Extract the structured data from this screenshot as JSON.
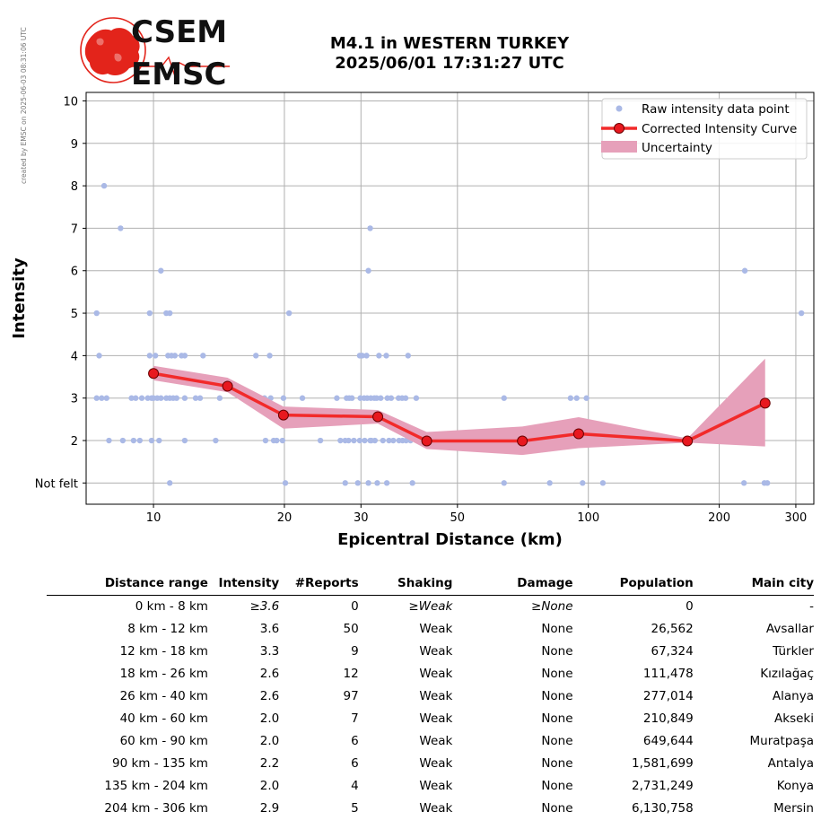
{
  "credit": "created by EMSC on 2025-06-03 08:31:06 UTC",
  "logo": {
    "line1": "CSEM",
    "line2": "EMSC",
    "red": "#e3241b"
  },
  "title": {
    "line1": "M4.1 in WESTERN TURKEY",
    "line2": "2025/06/01 17:31:27 UTC"
  },
  "chart_data": {
    "type": "scatter",
    "xlabel": "Epicentral Distance (km)",
    "ylabel": "Intensity",
    "x_scale": "log",
    "xlim": [
      7.0,
      330
    ],
    "ylim": [
      0.5,
      10.2
    ],
    "x_ticks": [
      10,
      20,
      30,
      50,
      100,
      200,
      300
    ],
    "y_ticks": [
      {
        "value": 1,
        "label": "Not felt"
      },
      {
        "value": 2,
        "label": "2"
      },
      {
        "value": 3,
        "label": "3"
      },
      {
        "value": 4,
        "label": "4"
      },
      {
        "value": 5,
        "label": "5"
      },
      {
        "value": 6,
        "label": "6"
      },
      {
        "value": 7,
        "label": "7"
      },
      {
        "value": 8,
        "label": "8"
      },
      {
        "value": 9,
        "label": "9"
      },
      {
        "value": 10,
        "label": "10"
      }
    ],
    "grid": true,
    "legend_position": "top-right",
    "legend": [
      "Raw intensity data point",
      "Corrected Intensity Curve",
      "Uncertainty"
    ],
    "colors": {
      "raw": "#aab9e6",
      "curve": "#f22a2a",
      "marker": "#e8181f",
      "band": "#e6a0ba"
    },
    "raw_points": [
      [
        7.7,
        8
      ],
      [
        8.4,
        7
      ],
      [
        10.4,
        6
      ],
      [
        31.2,
        6
      ],
      [
        229,
        6
      ],
      [
        31.5,
        7
      ],
      [
        7.4,
        5
      ],
      [
        9.8,
        5
      ],
      [
        10.7,
        5
      ],
      [
        10.9,
        5
      ],
      [
        20.5,
        5
      ],
      [
        309,
        5
      ],
      [
        7.5,
        4
      ],
      [
        9.8,
        4
      ],
      [
        10.1,
        4
      ],
      [
        10.8,
        4
      ],
      [
        11.0,
        4
      ],
      [
        11.2,
        4
      ],
      [
        11.6,
        4
      ],
      [
        11.8,
        4
      ],
      [
        13.0,
        4
      ],
      [
        17.2,
        4
      ],
      [
        18.5,
        4
      ],
      [
        29.8,
        4
      ],
      [
        30.2,
        4
      ],
      [
        30.9,
        4
      ],
      [
        33.0,
        4
      ],
      [
        34.3,
        4
      ],
      [
        38.5,
        4
      ],
      [
        7.4,
        3
      ],
      [
        7.6,
        3
      ],
      [
        7.8,
        3
      ],
      [
        8.9,
        3
      ],
      [
        9.1,
        3
      ],
      [
        9.4,
        3
      ],
      [
        9.7,
        3
      ],
      [
        9.9,
        3
      ],
      [
        10.0,
        3
      ],
      [
        10.2,
        3
      ],
      [
        10.4,
        3
      ],
      [
        10.7,
        3
      ],
      [
        10.9,
        3
      ],
      [
        11.1,
        3
      ],
      [
        11.3,
        3
      ],
      [
        11.8,
        3
      ],
      [
        12.5,
        3
      ],
      [
        12.8,
        3
      ],
      [
        14.2,
        3
      ],
      [
        18.0,
        3
      ],
      [
        18.6,
        3
      ],
      [
        19.9,
        3
      ],
      [
        22.0,
        3
      ],
      [
        26.4,
        3
      ],
      [
        27.8,
        3
      ],
      [
        28.2,
        3
      ],
      [
        28.6,
        3
      ],
      [
        29.9,
        3
      ],
      [
        30.5,
        3
      ],
      [
        31.0,
        3
      ],
      [
        31.6,
        3
      ],
      [
        32.2,
        3
      ],
      [
        32.6,
        3
      ],
      [
        33.3,
        3
      ],
      [
        34.5,
        3
      ],
      [
        35.2,
        3
      ],
      [
        36.6,
        3
      ],
      [
        37.3,
        3
      ],
      [
        38.0,
        3
      ],
      [
        40.2,
        3
      ],
      [
        64.0,
        3
      ],
      [
        91.0,
        3
      ],
      [
        94.0,
        3
      ],
      [
        99.0,
        3
      ],
      [
        7.9,
        2
      ],
      [
        8.5,
        2
      ],
      [
        9.0,
        2
      ],
      [
        9.3,
        2
      ],
      [
        9.9,
        2
      ],
      [
        10.3,
        2
      ],
      [
        11.8,
        2
      ],
      [
        13.9,
        2
      ],
      [
        18.1,
        2
      ],
      [
        18.9,
        2
      ],
      [
        19.2,
        2
      ],
      [
        19.8,
        2
      ],
      [
        24.2,
        2
      ],
      [
        26.9,
        2
      ],
      [
        27.6,
        2
      ],
      [
        28.1,
        2
      ],
      [
        28.9,
        2
      ],
      [
        29.8,
        2
      ],
      [
        30.6,
        2
      ],
      [
        31.5,
        2
      ],
      [
        31.7,
        2
      ],
      [
        32.3,
        2
      ],
      [
        33.7,
        2
      ],
      [
        34.8,
        2
      ],
      [
        35.6,
        2
      ],
      [
        36.7,
        2
      ],
      [
        37.4,
        2
      ],
      [
        38.1,
        2
      ],
      [
        39.0,
        2
      ],
      [
        40.4,
        2
      ],
      [
        41.2,
        2
      ],
      [
        42.0,
        2
      ],
      [
        43.3,
        2
      ],
      [
        44.7,
        2
      ],
      [
        45.8,
        2
      ],
      [
        47.3,
        2
      ],
      [
        83.0,
        2
      ],
      [
        86.5,
        2
      ],
      [
        10.9,
        1
      ],
      [
        20.1,
        1
      ],
      [
        27.6,
        1
      ],
      [
        29.5,
        1
      ],
      [
        31.2,
        1
      ],
      [
        32.7,
        1
      ],
      [
        34.4,
        1
      ],
      [
        39.4,
        1
      ],
      [
        64.0,
        1
      ],
      [
        81.5,
        1
      ],
      [
        97.0,
        1
      ],
      [
        108.0,
        1
      ],
      [
        228,
        1
      ],
      [
        254,
        1
      ],
      [
        258,
        1
      ]
    ],
    "curve": {
      "x": [
        10,
        14.8,
        19.9,
        32.8,
        42.5,
        70.5,
        95,
        169,
        255
      ],
      "y": [
        3.58,
        3.28,
        2.6,
        2.56,
        1.99,
        1.99,
        2.16,
        1.99,
        2.88
      ]
    },
    "uncertainty": {
      "x": [
        10,
        14.8,
        19.9,
        32.8,
        42.5,
        70.5,
        95,
        169,
        255
      ],
      "upper": [
        3.76,
        3.48,
        2.8,
        2.72,
        2.2,
        2.33,
        2.55,
        2.05,
        3.93
      ],
      "lower": [
        3.42,
        3.14,
        2.28,
        2.4,
        1.8,
        1.66,
        1.82,
        1.95,
        1.86
      ]
    }
  },
  "table": {
    "headers": [
      "Distance range",
      "Intensity",
      "#Reports",
      "Shaking",
      "Damage",
      "Population",
      "Main city"
    ],
    "rows": [
      [
        "0 km -    8 km",
        "≥3.6",
        "0",
        "≥Weak",
        "≥None",
        "0",
        "-"
      ],
      [
        "8 km -   12 km",
        "3.6",
        "50",
        "Weak",
        "None",
        "26,562",
        "Avsallar"
      ],
      [
        "12 km -   18 km",
        "3.3",
        "9",
        "Weak",
        "None",
        "67,324",
        "Türkler"
      ],
      [
        "18 km -   26 km",
        "2.6",
        "12",
        "Weak",
        "None",
        "111,478",
        "Kızılağaç"
      ],
      [
        "26 km -   40 km",
        "2.6",
        "97",
        "Weak",
        "None",
        "277,014",
        "Alanya"
      ],
      [
        "40 km -   60 km",
        "2.0",
        "7",
        "Weak",
        "None",
        "210,849",
        "Akseki"
      ],
      [
        "60 km -   90 km",
        "2.0",
        "6",
        "Weak",
        "None",
        "649,644",
        "Muratpaşa"
      ],
      [
        "90 km -  135 km",
        "2.2",
        "6",
        "Weak",
        "None",
        "1,581,699",
        "Antalya"
      ],
      [
        "135 km -  204 km",
        "2.0",
        "4",
        "Weak",
        "None",
        "2,731,249",
        "Konya"
      ],
      [
        "204 km -  306 km",
        "2.9",
        "5",
        "Weak",
        "None",
        "6,130,758",
        "Mersin"
      ]
    ]
  }
}
